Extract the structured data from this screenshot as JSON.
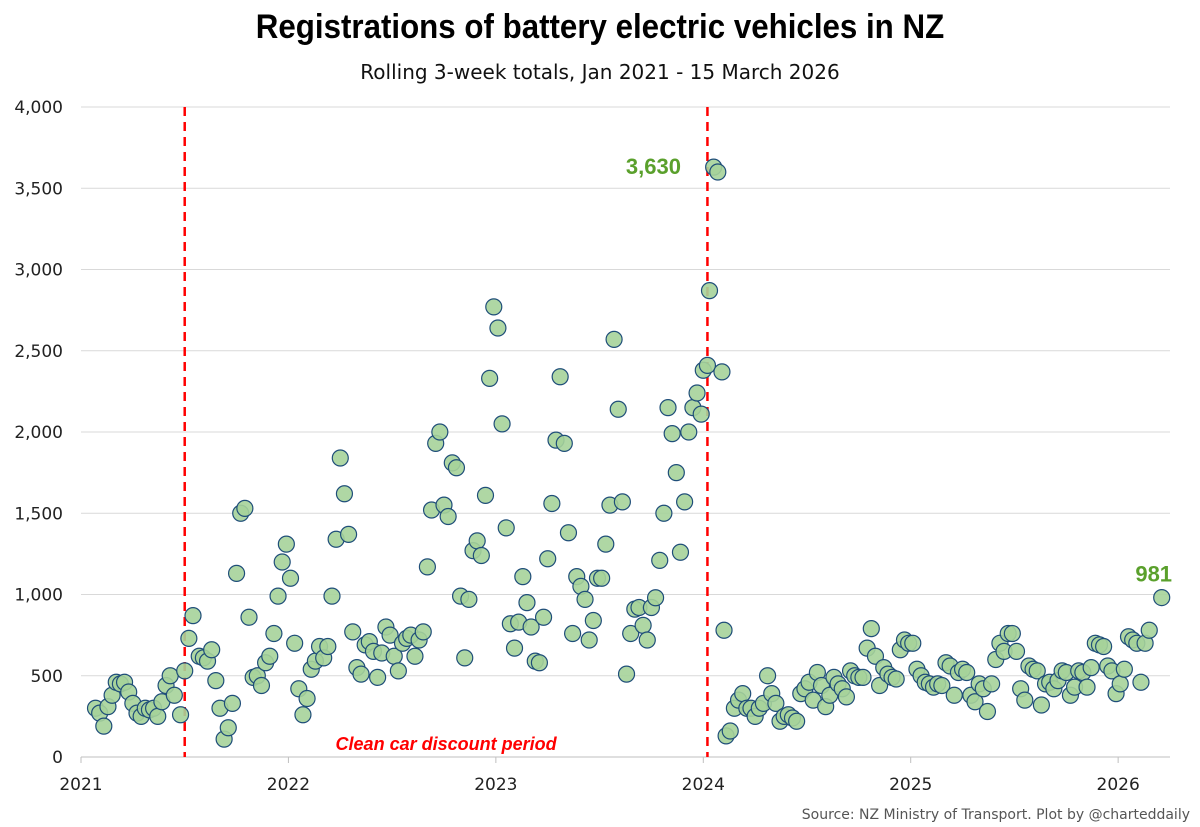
{
  "chart_data": {
    "type": "scatter",
    "title": "Registrations of battery electric vehicles in NZ",
    "subtitle": "Rolling 3-week totals, Jan 2021 - 15 March 2026",
    "source": "Source: NZ Ministry of Transport. Plot by @charteddaily",
    "xlim": [
      2021,
      2026.25
    ],
    "ylim": [
      0,
      4000
    ],
    "x_ticks": [
      2021,
      2022,
      2023,
      2024,
      2025,
      2026
    ],
    "x_tick_labels": [
      "2021",
      "2022",
      "2023",
      "2024",
      "2025",
      "2026"
    ],
    "y_ticks": [
      0,
      500,
      1000,
      1500,
      2000,
      2500,
      3000,
      3500,
      4000
    ],
    "y_tick_labels": [
      "0",
      "500",
      "1,000",
      "1,500",
      "2,000",
      "2,500",
      "3,000",
      "3,500",
      "4,000"
    ],
    "grid": "horizontal",
    "colors": {
      "marker_fill": "#a6d39a",
      "marker_edge": "#1f4e79",
      "vline": "#ff0000",
      "annotation": "#5aa02c",
      "grid": "#d9d9d9"
    },
    "vlines": [
      2021.5,
      2024.02
    ],
    "period_label": "Clean car discount period",
    "annotations": [
      {
        "x": 2023.96,
        "y": 3630,
        "text": "3,630"
      },
      {
        "x": 2026.21,
        "y": 981,
        "text": "981"
      }
    ],
    "points": [
      [
        2021.07,
        300
      ],
      [
        2021.09,
        270
      ],
      [
        2021.11,
        190
      ],
      [
        2021.13,
        310
      ],
      [
        2021.15,
        380
      ],
      [
        2021.17,
        460
      ],
      [
        2021.19,
        450
      ],
      [
        2021.21,
        460
      ],
      [
        2021.23,
        400
      ],
      [
        2021.25,
        330
      ],
      [
        2021.27,
        270
      ],
      [
        2021.29,
        250
      ],
      [
        2021.31,
        300
      ],
      [
        2021.33,
        290
      ],
      [
        2021.35,
        300
      ],
      [
        2021.37,
        250
      ],
      [
        2021.39,
        340
      ],
      [
        2021.41,
        440
      ],
      [
        2021.43,
        500
      ],
      [
        2021.45,
        380
      ],
      [
        2021.48,
        260
      ],
      [
        2021.5,
        530
      ],
      [
        2021.52,
        730
      ],
      [
        2021.54,
        870
      ],
      [
        2021.57,
        620
      ],
      [
        2021.59,
        610
      ],
      [
        2021.61,
        590
      ],
      [
        2021.63,
        660
      ],
      [
        2021.65,
        470
      ],
      [
        2021.67,
        300
      ],
      [
        2021.69,
        110
      ],
      [
        2021.71,
        180
      ],
      [
        2021.73,
        330
      ],
      [
        2021.75,
        1130
      ],
      [
        2021.77,
        1500
      ],
      [
        2021.79,
        1530
      ],
      [
        2021.81,
        860
      ],
      [
        2021.83,
        490
      ],
      [
        2021.85,
        500
      ],
      [
        2021.87,
        440
      ],
      [
        2021.89,
        580
      ],
      [
        2021.91,
        620
      ],
      [
        2021.93,
        760
      ],
      [
        2021.95,
        990
      ],
      [
        2021.97,
        1200
      ],
      [
        2021.99,
        1310
      ],
      [
        2022.01,
        1100
      ],
      [
        2022.03,
        700
      ],
      [
        2022.05,
        420
      ],
      [
        2022.07,
        260
      ],
      [
        2022.09,
        360
      ],
      [
        2022.11,
        540
      ],
      [
        2022.13,
        590
      ],
      [
        2022.15,
        680
      ],
      [
        2022.17,
        610
      ],
      [
        2022.19,
        680
      ],
      [
        2022.21,
        990
      ],
      [
        2022.23,
        1340
      ],
      [
        2022.25,
        1840
      ],
      [
        2022.27,
        1620
      ],
      [
        2022.29,
        1370
      ],
      [
        2022.31,
        770
      ],
      [
        2022.33,
        550
      ],
      [
        2022.35,
        510
      ],
      [
        2022.37,
        690
      ],
      [
        2022.39,
        710
      ],
      [
        2022.41,
        650
      ],
      [
        2022.43,
        490
      ],
      [
        2022.45,
        640
      ],
      [
        2022.47,
        800
      ],
      [
        2022.49,
        750
      ],
      [
        2022.51,
        620
      ],
      [
        2022.53,
        530
      ],
      [
        2022.55,
        700
      ],
      [
        2022.57,
        730
      ],
      [
        2022.59,
        750
      ],
      [
        2022.61,
        620
      ],
      [
        2022.63,
        720
      ],
      [
        2022.65,
        770
      ],
      [
        2022.67,
        1170
      ],
      [
        2022.69,
        1520
      ],
      [
        2022.71,
        1930
      ],
      [
        2022.73,
        2000
      ],
      [
        2022.75,
        1550
      ],
      [
        2022.77,
        1480
      ],
      [
        2022.79,
        1810
      ],
      [
        2022.81,
        1780
      ],
      [
        2022.83,
        990
      ],
      [
        2022.85,
        610
      ],
      [
        2022.87,
        970
      ],
      [
        2022.89,
        1270
      ],
      [
        2022.91,
        1330
      ],
      [
        2022.93,
        1240
      ],
      [
        2022.95,
        1610
      ],
      [
        2022.97,
        2330
      ],
      [
        2022.99,
        2770
      ],
      [
        2023.01,
        2640
      ],
      [
        2023.03,
        2050
      ],
      [
        2023.05,
        1410
      ],
      [
        2023.07,
        820
      ],
      [
        2023.09,
        670
      ],
      [
        2023.11,
        830
      ],
      [
        2023.13,
        1110
      ],
      [
        2023.15,
        950
      ],
      [
        2023.17,
        800
      ],
      [
        2023.19,
        590
      ],
      [
        2023.21,
        580
      ],
      [
        2023.23,
        860
      ],
      [
        2023.25,
        1220
      ],
      [
        2023.27,
        1560
      ],
      [
        2023.29,
        1950
      ],
      [
        2023.31,
        2340
      ],
      [
        2023.33,
        1930
      ],
      [
        2023.35,
        1380
      ],
      [
        2023.37,
        760
      ],
      [
        2023.39,
        1110
      ],
      [
        2023.41,
        1050
      ],
      [
        2023.43,
        970
      ],
      [
        2023.45,
        720
      ],
      [
        2023.47,
        840
      ],
      [
        2023.49,
        1100
      ],
      [
        2023.51,
        1100
      ],
      [
        2023.53,
        1310
      ],
      [
        2023.55,
        1550
      ],
      [
        2023.57,
        2570
      ],
      [
        2023.59,
        2140
      ],
      [
        2023.61,
        1570
      ],
      [
        2023.63,
        510
      ],
      [
        2023.65,
        760
      ],
      [
        2023.67,
        910
      ],
      [
        2023.69,
        920
      ],
      [
        2023.71,
        810
      ],
      [
        2023.73,
        720
      ],
      [
        2023.75,
        920
      ],
      [
        2023.77,
        980
      ],
      [
        2023.79,
        1210
      ],
      [
        2023.81,
        1500
      ],
      [
        2023.83,
        2150
      ],
      [
        2023.85,
        1990
      ],
      [
        2023.87,
        1750
      ],
      [
        2023.89,
        1260
      ],
      [
        2023.91,
        1570
      ],
      [
        2023.93,
        2000
      ],
      [
        2023.95,
        2150
      ],
      [
        2023.97,
        2240
      ],
      [
        2023.99,
        2110
      ],
      [
        2024.0,
        2380
      ],
      [
        2024.02,
        2410
      ],
      [
        2024.03,
        2870
      ],
      [
        2024.05,
        3630
      ],
      [
        2024.07,
        3600
      ],
      [
        2024.09,
        2370
      ],
      [
        2024.1,
        780
      ],
      [
        2024.11,
        130
      ],
      [
        2024.13,
        160
      ],
      [
        2024.15,
        300
      ],
      [
        2024.17,
        350
      ],
      [
        2024.19,
        390
      ],
      [
        2024.21,
        300
      ],
      [
        2024.23,
        300
      ],
      [
        2024.25,
        250
      ],
      [
        2024.27,
        300
      ],
      [
        2024.29,
        330
      ],
      [
        2024.31,
        500
      ],
      [
        2024.33,
        390
      ],
      [
        2024.35,
        330
      ],
      [
        2024.37,
        220
      ],
      [
        2024.39,
        250
      ],
      [
        2024.41,
        260
      ],
      [
        2024.43,
        240
      ],
      [
        2024.45,
        220
      ],
      [
        2024.47,
        390
      ],
      [
        2024.49,
        420
      ],
      [
        2024.51,
        460
      ],
      [
        2024.53,
        350
      ],
      [
        2024.55,
        520
      ],
      [
        2024.57,
        440
      ],
      [
        2024.59,
        310
      ],
      [
        2024.61,
        380
      ],
      [
        2024.63,
        490
      ],
      [
        2024.65,
        450
      ],
      [
        2024.67,
        420
      ],
      [
        2024.69,
        370
      ],
      [
        2024.71,
        530
      ],
      [
        2024.73,
        500
      ],
      [
        2024.75,
        490
      ],
      [
        2024.77,
        490
      ],
      [
        2024.79,
        670
      ],
      [
        2024.81,
        790
      ],
      [
        2024.83,
        620
      ],
      [
        2024.85,
        440
      ],
      [
        2024.87,
        550
      ],
      [
        2024.89,
        510
      ],
      [
        2024.91,
        490
      ],
      [
        2024.93,
        480
      ],
      [
        2024.95,
        660
      ],
      [
        2024.97,
        720
      ],
      [
        2024.99,
        700
      ],
      [
        2025.01,
        700
      ],
      [
        2025.03,
        540
      ],
      [
        2025.05,
        500
      ],
      [
        2025.07,
        460
      ],
      [
        2025.09,
        450
      ],
      [
        2025.11,
        430
      ],
      [
        2025.13,
        450
      ],
      [
        2025.15,
        440
      ],
      [
        2025.17,
        580
      ],
      [
        2025.19,
        560
      ],
      [
        2025.21,
        380
      ],
      [
        2025.23,
        520
      ],
      [
        2025.25,
        540
      ],
      [
        2025.27,
        520
      ],
      [
        2025.29,
        380
      ],
      [
        2025.31,
        340
      ],
      [
        2025.33,
        450
      ],
      [
        2025.35,
        420
      ],
      [
        2025.37,
        280
      ],
      [
        2025.39,
        450
      ],
      [
        2025.41,
        600
      ],
      [
        2025.43,
        700
      ],
      [
        2025.45,
        650
      ],
      [
        2025.47,
        760
      ],
      [
        2025.49,
        760
      ],
      [
        2025.51,
        650
      ],
      [
        2025.53,
        420
      ],
      [
        2025.55,
        350
      ],
      [
        2025.57,
        560
      ],
      [
        2025.59,
        540
      ],
      [
        2025.61,
        530
      ],
      [
        2025.63,
        320
      ],
      [
        2025.65,
        450
      ],
      [
        2025.67,
        460
      ],
      [
        2025.69,
        420
      ],
      [
        2025.71,
        470
      ],
      [
        2025.73,
        530
      ],
      [
        2025.75,
        520
      ],
      [
        2025.77,
        380
      ],
      [
        2025.79,
        430
      ],
      [
        2025.81,
        530
      ],
      [
        2025.83,
        520
      ],
      [
        2025.85,
        430
      ],
      [
        2025.87,
        550
      ],
      [
        2025.89,
        700
      ],
      [
        2025.91,
        690
      ],
      [
        2025.93,
        680
      ],
      [
        2025.95,
        560
      ],
      [
        2025.97,
        530
      ],
      [
        2025.99,
        390
      ],
      [
        2026.01,
        450
      ],
      [
        2026.03,
        540
      ],
      [
        2026.05,
        740
      ],
      [
        2026.07,
        720
      ],
      [
        2026.09,
        700
      ],
      [
        2026.11,
        460
      ],
      [
        2026.13,
        700
      ],
      [
        2026.15,
        780
      ],
      [
        2026.21,
        981
      ]
    ]
  }
}
